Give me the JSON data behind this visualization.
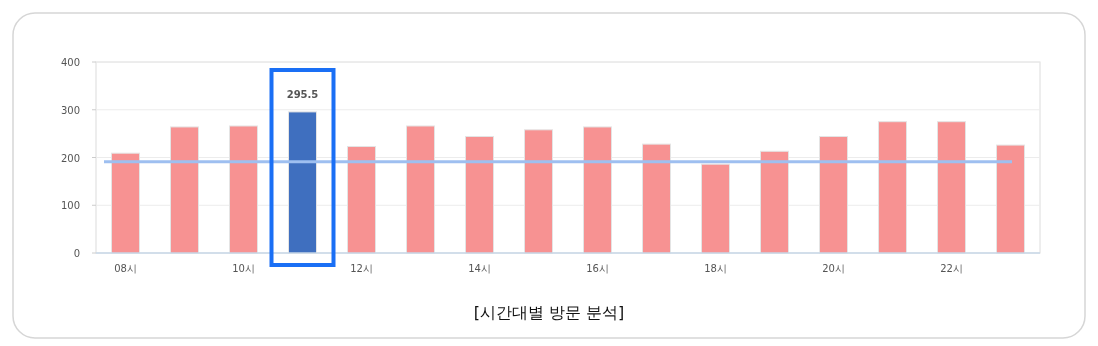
{
  "chart_data": {
    "type": "bar",
    "categories": [
      "08시",
      null,
      "10시",
      null,
      "12시",
      null,
      "14시",
      null,
      "16시",
      null,
      "18시",
      null,
      "20시",
      null,
      "22시",
      null
    ],
    "values": [
      209,
      264,
      266,
      295.5,
      223,
      266,
      244,
      258,
      264,
      228,
      186,
      213,
      244,
      275,
      275,
      226
    ],
    "colors": [
      "#f79292",
      "#f79292",
      "#f79292",
      "#3f6fbf",
      "#f79292",
      "#f79292",
      "#f79292",
      "#f79292",
      "#f79292",
      "#f79292",
      "#f79292",
      "#f79292",
      "#f79292",
      "#f79292",
      "#f79292",
      "#f79292"
    ],
    "value_labels": [
      null,
      null,
      null,
      "295.5",
      null,
      null,
      null,
      null,
      null,
      null,
      null,
      null,
      null,
      null,
      null,
      null
    ],
    "ylim": [
      0,
      400
    ],
    "yticks": [
      0,
      100,
      200,
      300,
      400
    ],
    "grid": "y",
    "ref_lines": [
      {
        "axis": "y",
        "value": 191,
        "color": "#9ebff0"
      }
    ],
    "annotations": [
      "[시간대별 방문 분석]"
    ]
  }
}
